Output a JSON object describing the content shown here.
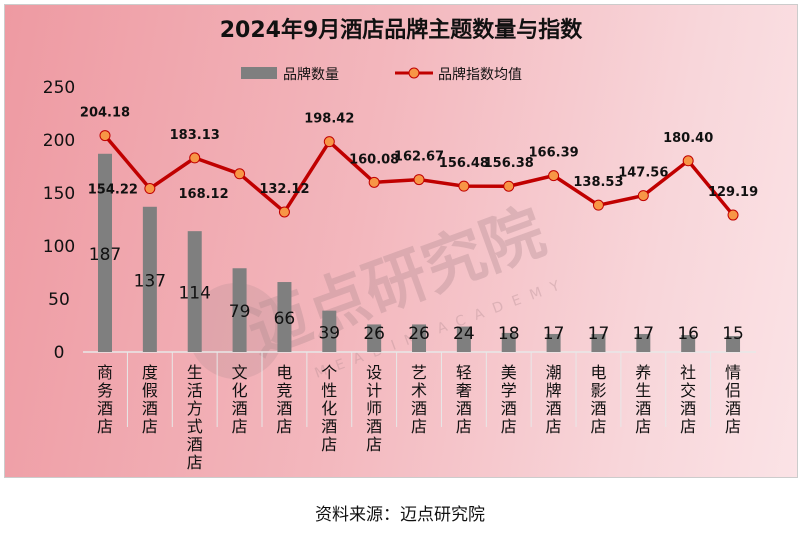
{
  "chart_data": {
    "type": "bar+line",
    "title": "2024年9月酒店品牌主题数量与指数",
    "categories": [
      "商务酒店",
      "度假酒店",
      "生活方式酒店",
      "文化酒店",
      "电竞酒店",
      "个性化酒店",
      "设计师酒店",
      "艺术酒店",
      "轻奢酒店",
      "美学酒店",
      "潮牌酒店",
      "电影酒店",
      "养生酒店",
      "社交酒店",
      "情侣酒店"
    ],
    "series": [
      {
        "name": "品牌数量",
        "type": "bar",
        "color": "#7f7f7f",
        "values": [
          187,
          137,
          114,
          79,
          66,
          39,
          26,
          26,
          24,
          18,
          17,
          17,
          17,
          16,
          15
        ]
      },
      {
        "name": "品牌指数均值",
        "type": "line",
        "color": "#c00000",
        "marker_color": "#f79646",
        "values": [
          204.18,
          154.22,
          183.13,
          168.12,
          132.12,
          198.42,
          160.08,
          162.67,
          156.48,
          156.38,
          166.39,
          138.53,
          147.56,
          180.4,
          129.19
        ]
      }
    ],
    "ylim": [
      0,
      250
    ],
    "yticks": [
      0,
      50,
      100,
      150,
      200,
      250
    ],
    "grid": false,
    "legend": "top"
  },
  "source": "资料来源：迈点研究院",
  "watermark": "迈点研究院 MEADIN ACADEMY"
}
